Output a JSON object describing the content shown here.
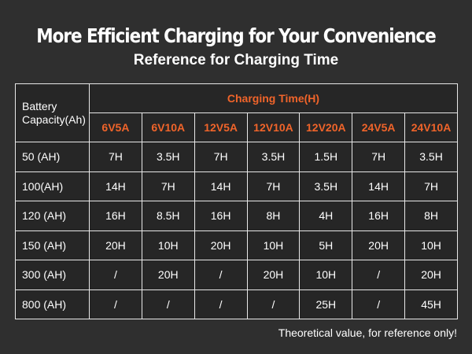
{
  "title": "More Efficient Charging for Your Convenience",
  "subtitle": "Reference for Charging Time",
  "table": {
    "capacity_header": "Battery Capacity(Ah)",
    "group_header": "Charging Time(H)",
    "models": [
      "6V5A",
      "6V10A",
      "12V5A",
      "12V10A",
      "12V20A",
      "24V5A",
      "24V10A"
    ],
    "rows": [
      {
        "label": "50 (AH)",
        "values": [
          "7H",
          "3.5H",
          "7H",
          "3.5H",
          "1.5H",
          "7H",
          "3.5H"
        ]
      },
      {
        "label": "100(AH)",
        "values": [
          "14H",
          "7H",
          "14H",
          "7H",
          "3.5H",
          "14H",
          "7H"
        ]
      },
      {
        "label": "120 (AH)",
        "values": [
          "16H",
          "8.5H",
          "16H",
          "8H",
          "4H",
          "16H",
          "8H"
        ]
      },
      {
        "label": "150 (AH)",
        "values": [
          "20H",
          "10H",
          "20H",
          "10H",
          "5H",
          "20H",
          "10H"
        ]
      },
      {
        "label": "300 (AH)",
        "values": [
          "/",
          "20H",
          "/",
          "20H",
          "10H",
          "/",
          "20H"
        ]
      },
      {
        "label": "800 (AH)",
        "values": [
          "/",
          "/",
          "/",
          "/",
          "25H",
          "/",
          "45H"
        ]
      }
    ]
  },
  "note": "Theoretical value, for reference only!",
  "colors": {
    "background": "#2f2f2f",
    "table_bg": "#262626",
    "accent": "#f0642a",
    "border": "#e8e8e8"
  }
}
